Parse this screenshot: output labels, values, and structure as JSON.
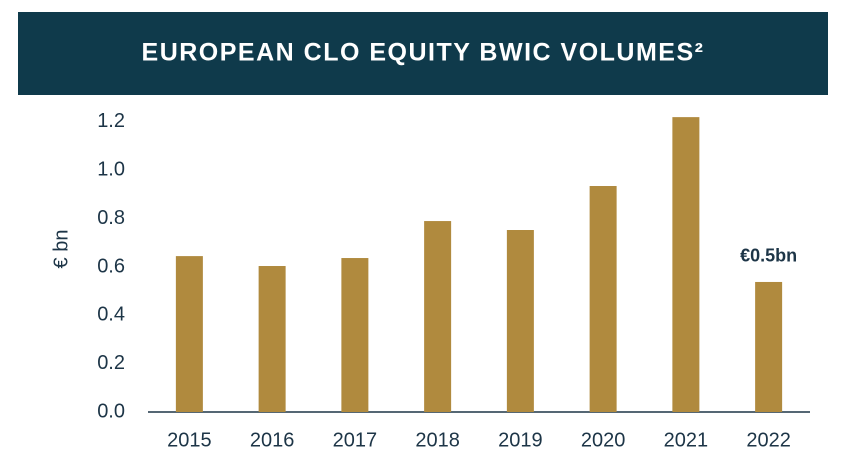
{
  "chart_data": {
    "type": "bar",
    "title": "EUROPEAN CLO EQUITY BWIC VOLUMES²",
    "y_label": "€ bn",
    "categories": [
      "2015",
      "2016",
      "2017",
      "2018",
      "2019",
      "2020",
      "2021",
      "2022"
    ],
    "values": [
      0.645,
      0.604,
      0.637,
      0.79,
      0.753,
      0.935,
      1.22,
      0.538
    ],
    "value_labels": [
      null,
      null,
      null,
      null,
      null,
      null,
      null,
      "€0.5bn"
    ],
    "color": "#b08a3e",
    "ylim": [
      0,
      1.25
    ],
    "yticks": [
      {
        "value": 0,
        "label": "0.0"
      },
      0.2,
      0.4,
      0.6,
      0.8,
      {
        "value": 1,
        "label": "1.0"
      },
      1.2
    ],
    "grid": false
  }
}
